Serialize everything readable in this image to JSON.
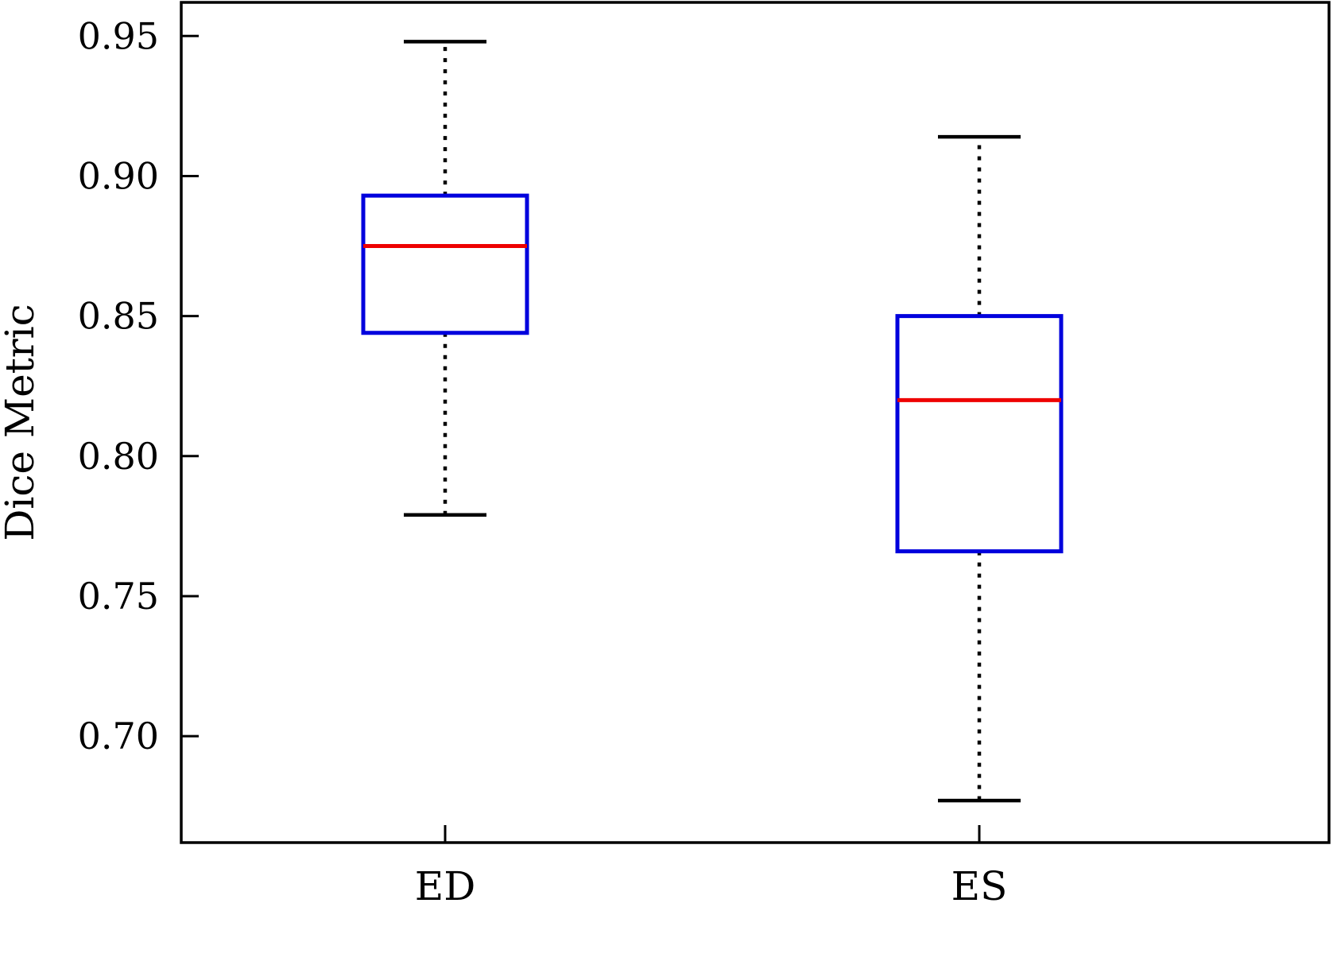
{
  "figure": {
    "background": "#ffffff"
  },
  "chart_data": {
    "type": "boxplot",
    "title": "",
    "xlabel": "",
    "ylabel": "Dice Metric",
    "categories": [
      "ED",
      "ES"
    ],
    "ylim": [
      0.662,
      0.962
    ],
    "grid": false,
    "legend": "none",
    "yticks": [
      {
        "value": 0.7,
        "label": "0.70"
      },
      {
        "value": 0.75,
        "label": "0.75"
      },
      {
        "value": 0.8,
        "label": "0.80"
      },
      {
        "value": 0.85,
        "label": "0.85"
      },
      {
        "value": 0.9,
        "label": "0.90"
      },
      {
        "value": 0.95,
        "label": "0.95"
      }
    ],
    "series": [
      {
        "name": "ED",
        "whisker_low": 0.779,
        "q1": 0.844,
        "median": 0.875,
        "q3": 0.893,
        "whisker_high": 0.948
      },
      {
        "name": "ES",
        "whisker_low": 0.677,
        "q1": 0.766,
        "median": 0.82,
        "q3": 0.85,
        "whisker_high": 0.914
      }
    ],
    "colors": {
      "box": "#0000dd",
      "median": "#ee0000",
      "whisker": "#000000",
      "frame": "#000000",
      "background": "#ffffff"
    }
  }
}
